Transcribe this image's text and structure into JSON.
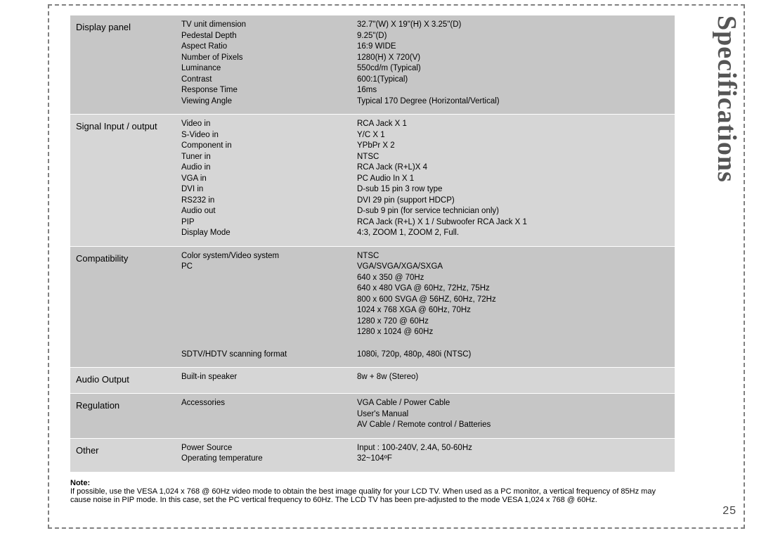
{
  "page": {
    "side_title": "Specifications",
    "page_number": "25",
    "note_label": "Note:",
    "note_text": "If possible, use the VESA 1,024 x 768 @ 60Hz video mode to obtain the best image quality for your LCD TV. When used as a PC monitor, a vertical frequency of 85Hz may cause noise in PIP mode. In this case, set the PC vertical frequency to 60Hz. The LCD TV has been pre-adjusted to the mode VESA 1,024 x 768 @ 60Hz."
  },
  "styles": {
    "row_colors": [
      "#c6c6c6",
      "#d6d6d6"
    ],
    "border_dash_color": "#808080",
    "text_color": "#000000",
    "side_title_color": "#555555"
  },
  "sections": [
    {
      "category": "Display panel",
      "bg_index": 0,
      "params": "TV unit dimension\nPedestal Depth\nAspect Ratio\nNumber of Pixels\nLuminance\nContrast\nResponse Time\nViewing Angle",
      "values": "32.7\"(W) X 19\"(H) X 3.25\"(D)\n9.25\"(D)\n16:9 WIDE\n1280(H) X 720(V)\n550cd/m (Typical)\n600:1(Typical)\n16ms\nTypical 170 Degree (Horizontal/Vertical)"
    },
    {
      "category": "Signal Input / output",
      "bg_index": 1,
      "params": "Video in\nS-Video in\nComponent in\nTuner in\nAudio in\nVGA in\nDVI in\nRS232 in\nAudio out\nPIP\nDisplay Mode",
      "values": "RCA Jack X 1\nY/C X 1\nYPbPr X 2\nNTSC\nRCA Jack (R+L)X 4\nPC Audio In X 1\nD-sub 15 pin 3 row type\nDVI 29 pin (support HDCP)\nD-sub 9 pin (for service technician only)\nRCA Jack (R+L) X 1 / Subwoofer RCA Jack X 1\n4:3, ZOOM 1, ZOOM 2, Full."
    },
    {
      "category": "Compatibility",
      "bg_index": 0,
      "rows": [
        {
          "params": "Color system/Video system\nPC",
          "values": "NTSC\nVGA/SVGA/XGA/SXGA\n640 x 350 @ 70Hz\n640 x 480 VGA @ 60Hz, 72Hz, 75Hz\n800 x 600 SVGA @ 56HZ, 60Hz, 72Hz\n1024 x 768 XGA @ 60Hz, 70Hz\n1280 x 720 @ 60Hz\n1280 x 1024 @ 60Hz"
        },
        {
          "params": "SDTV/HDTV scanning format",
          "values": "1080i, 720p, 480p, 480i (NTSC)"
        }
      ]
    },
    {
      "category": "Audio Output",
      "bg_index": 1,
      "params": "Built-in speaker",
      "values": "8w + 8w (Stereo)"
    },
    {
      "category": "Regulation",
      "bg_index": 0,
      "params": "Accessories",
      "values": "VGA Cable / Power Cable\nUser's Manual\nAV Cable / Remote control / Batteries"
    },
    {
      "category": "Other",
      "bg_index": 1,
      "params": "Power Source\nOperating temperature",
      "values": "Input : 100-240V, 2.4A, 50-60Hz\n32~104ºF"
    }
  ]
}
